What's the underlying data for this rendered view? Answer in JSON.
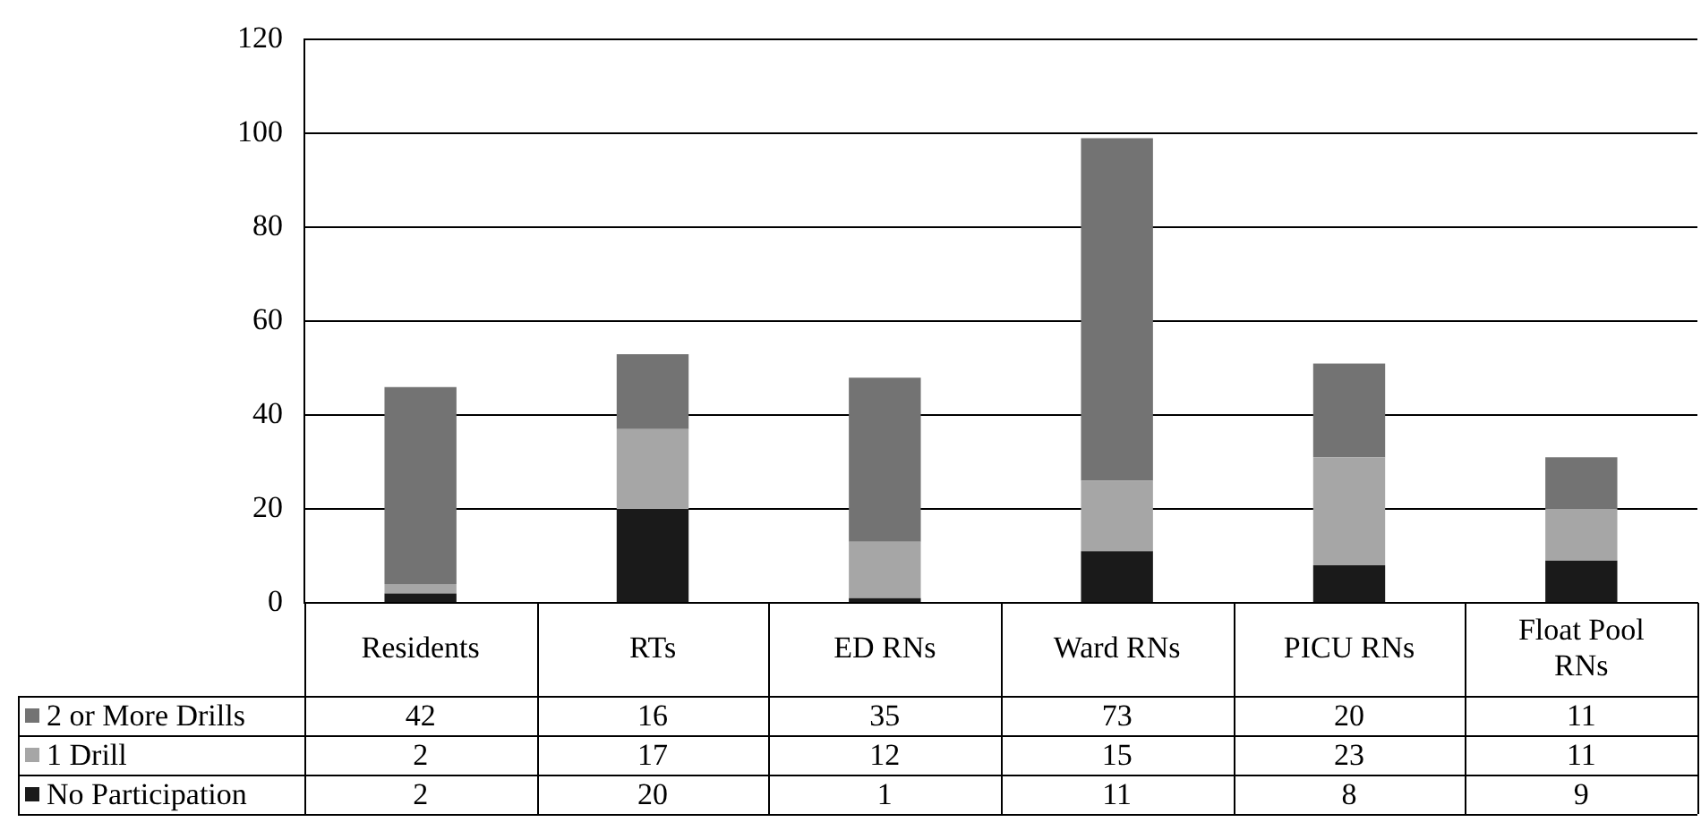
{
  "chart_data": {
    "type": "bar",
    "stacked": true,
    "categories": [
      "Residents",
      "RTs",
      "ED RNs",
      "Ward RNs",
      "PICU RNs",
      "Float Pool RNs"
    ],
    "series": [
      {
        "name": "No Participation",
        "color": "#1a1a1a",
        "values": [
          2,
          20,
          1,
          11,
          8,
          9
        ]
      },
      {
        "name": "1 Drill",
        "color": "#a6a6a6",
        "values": [
          2,
          17,
          12,
          15,
          23,
          11
        ]
      },
      {
        "name": "2 or More Drills",
        "color": "#737373",
        "values": [
          42,
          16,
          35,
          73,
          20,
          11
        ]
      }
    ],
    "ylim": [
      0,
      120
    ],
    "yticks": [
      0,
      20,
      40,
      60,
      80,
      100,
      120
    ],
    "grid": "y",
    "legend": "bottom left",
    "data_labels": true
  }
}
